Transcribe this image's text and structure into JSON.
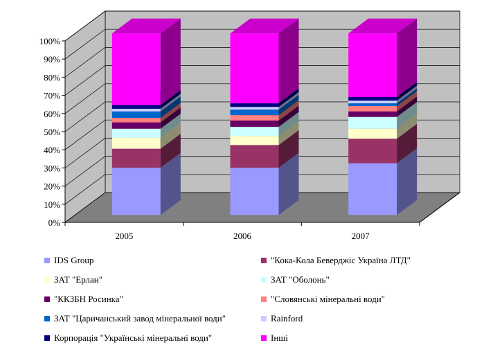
{
  "chart_data": {
    "type": "bar",
    "stacked": "percent",
    "three_d": true,
    "categories": [
      "2005",
      "2006",
      "2007"
    ],
    "ylim": [
      0,
      100
    ],
    "y_ticks": [
      "0%",
      "10%",
      "20%",
      "30%",
      "40%",
      "50%",
      "60%",
      "70%",
      "80%",
      "90%",
      "100%"
    ],
    "grid": true,
    "legend_position": "bottom",
    "series": [
      {
        "name": "IDS Group",
        "color": "#9999ff",
        "values": [
          26,
          26,
          28.5
        ]
      },
      {
        "name": "\"Кока-Кола Беверджіс Україна ЛТД\"",
        "color": "#993366",
        "values": [
          10.5,
          12.5,
          13.5
        ]
      },
      {
        "name": "ЗАТ \"Ерлан\"",
        "color": "#ffffcc",
        "values": [
          6,
          5,
          5.5
        ]
      },
      {
        "name": "ЗАТ \"Оболонь\"",
        "color": "#ccffff",
        "values": [
          5,
          5,
          6.5
        ]
      },
      {
        "name": "\"ККЗБН Росинка\"",
        "color": "#660066",
        "values": [
          3.5,
          3.5,
          3
        ]
      },
      {
        "name": "\"Словянські мінеральні води\"",
        "color": "#ff8080",
        "values": [
          2.5,
          3,
          3
        ]
      },
      {
        "name": "ЗАТ \"Царичанський завод мінеральної води\"",
        "color": "#0066cc",
        "values": [
          3.5,
          3,
          1.5
        ]
      },
      {
        "name": "Rainford",
        "color": "#ccccff",
        "values": [
          1.5,
          1.5,
          1.5
        ]
      },
      {
        "name": "Корпорація \"Українські мінеральні води\"",
        "color": "#000080",
        "values": [
          2,
          2,
          2
        ]
      },
      {
        "name": "Інші",
        "color": "#ff00ff",
        "values": [
          39.5,
          38.5,
          35
        ]
      }
    ]
  }
}
